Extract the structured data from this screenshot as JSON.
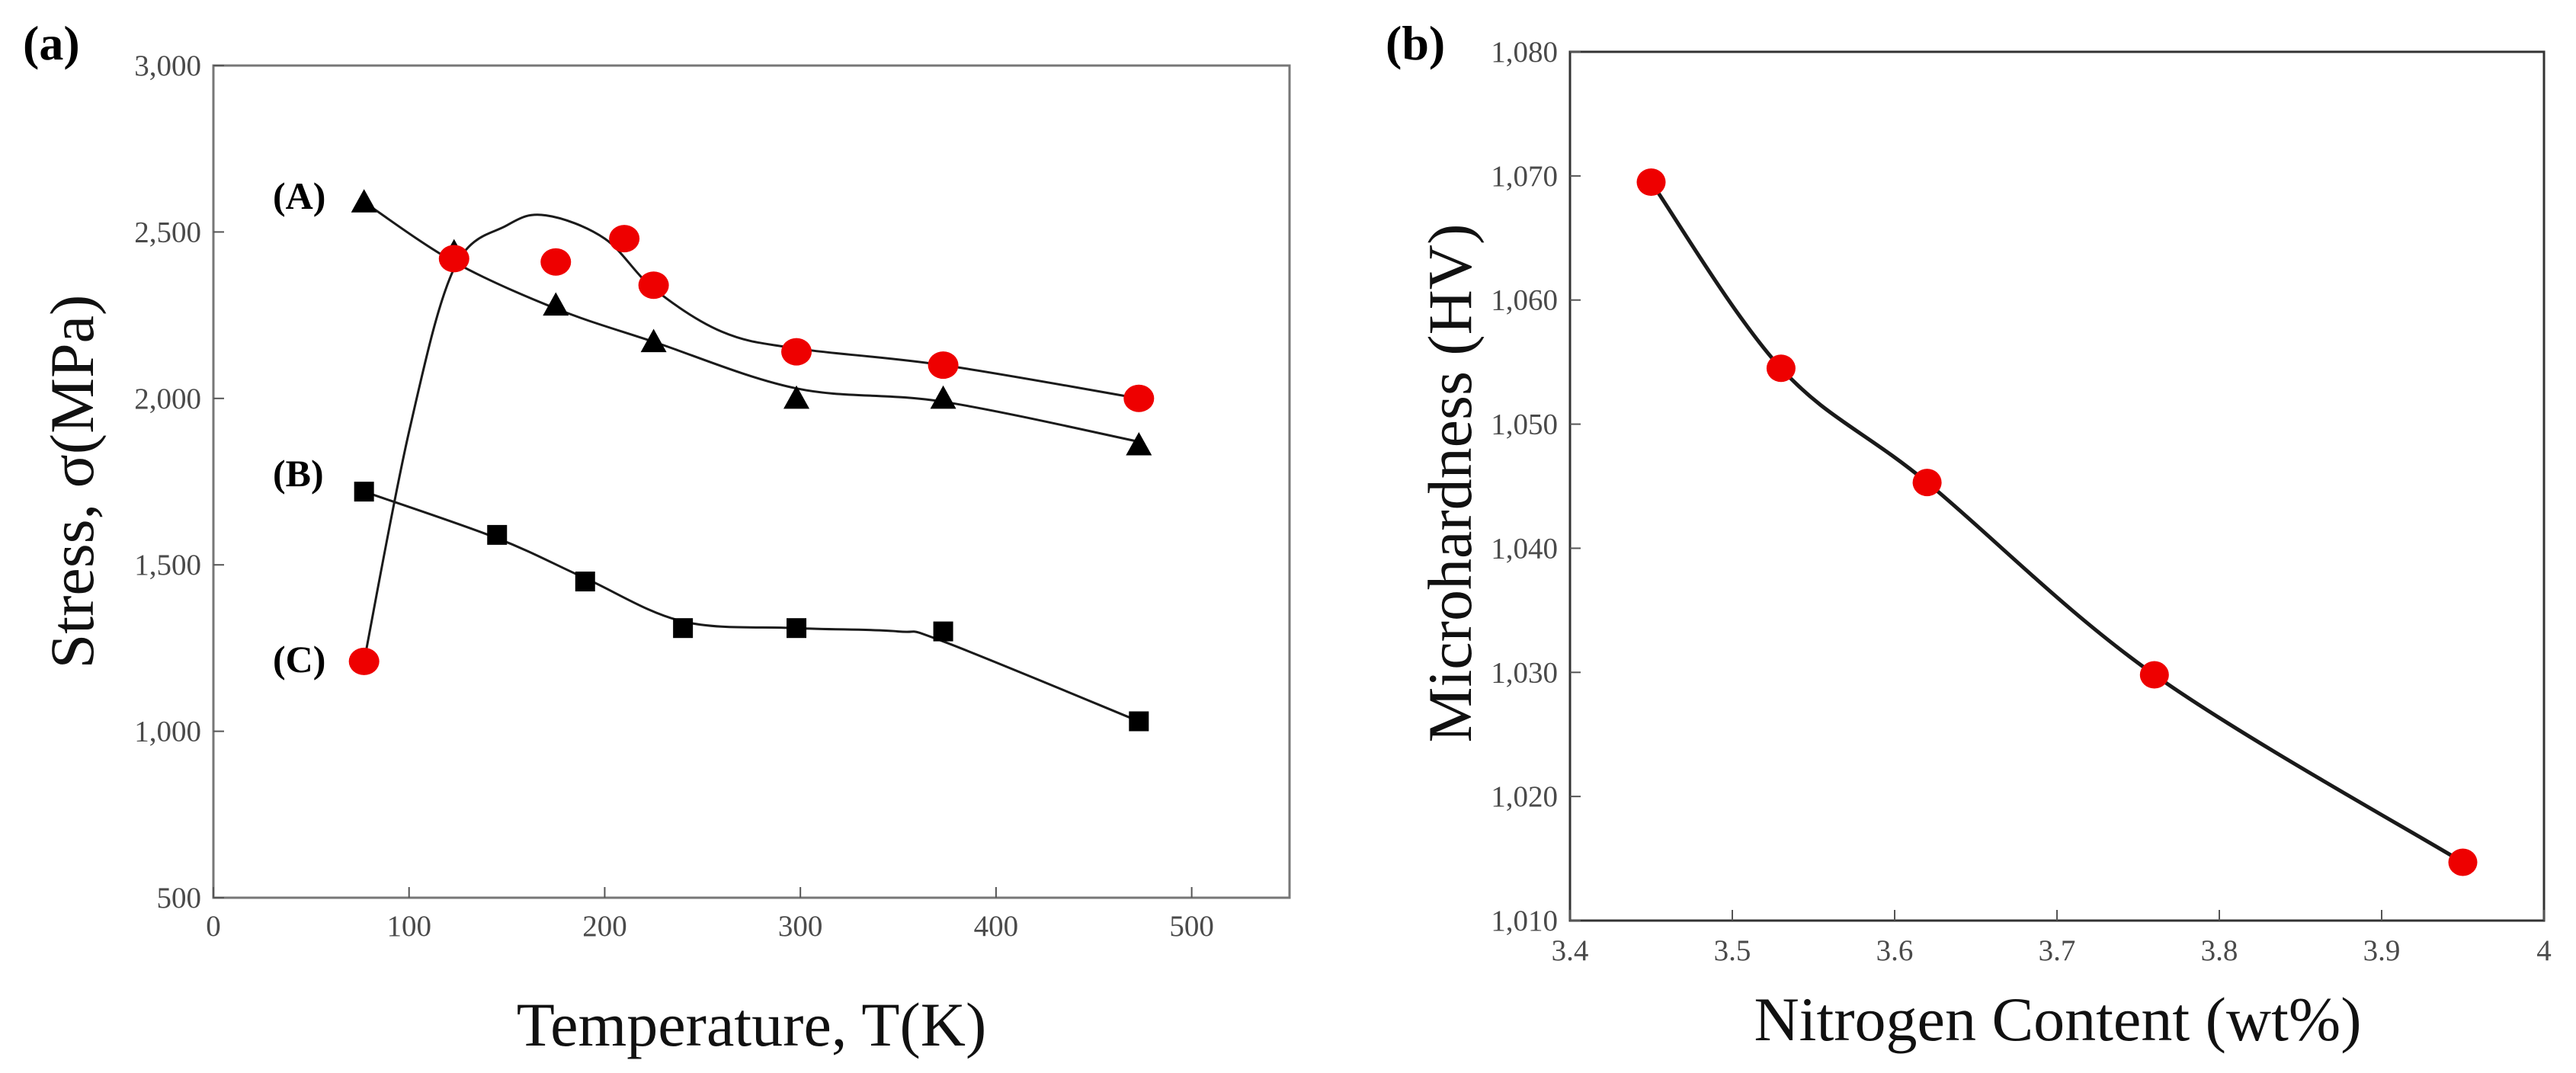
{
  "chart_data": [
    {
      "type": "line",
      "panel_label": "(a)",
      "xlabel": "Temperature, T(K)",
      "ylabel": "Stress, σ(MPa)",
      "xlim": [
        0,
        550
      ],
      "ylim": [
        500,
        3000
      ],
      "xticks": [
        0,
        100,
        200,
        300,
        400,
        500
      ],
      "yticks": [
        500,
        1000,
        1500,
        2000,
        2500,
        3000
      ],
      "xtick_labels": [
        "0",
        "100",
        "200",
        "300",
        "400",
        "500"
      ],
      "ytick_labels": [
        "500",
        "1,000",
        "1,500",
        "2,000",
        "2,500",
        "3,000"
      ],
      "grid": false,
      "series": [
        {
          "name": "(A)",
          "marker": "triangle",
          "color": "#000000",
          "x": [
            77,
            123,
            175,
            225,
            298,
            373,
            473
          ],
          "y": [
            2590,
            2440,
            2280,
            2170,
            2000,
            2000,
            1860
          ],
          "curve_x": [
            77,
            123,
            175,
            225,
            298,
            373,
            473
          ],
          "curve_y": [
            2590,
            2410,
            2270,
            2170,
            2030,
            1990,
            1870
          ]
        },
        {
          "name": "(B)",
          "marker": "square",
          "color": "#000000",
          "x": [
            77,
            145,
            190,
            240,
            298,
            373,
            473
          ],
          "y": [
            1720,
            1590,
            1450,
            1310,
            1310,
            1300,
            1030
          ],
          "curve_x": [
            77,
            145,
            190,
            240,
            298,
            350,
            373,
            473
          ],
          "curve_y": [
            1720,
            1580,
            1460,
            1330,
            1310,
            1300,
            1270,
            1030
          ]
        },
        {
          "name": "(C)",
          "marker": "circle",
          "color": "#ee0000",
          "x": [
            77,
            123,
            175,
            210,
            225,
            298,
            373,
            473
          ],
          "y": [
            1210,
            2420,
            2410,
            2480,
            2340,
            2140,
            2100,
            2000
          ],
          "curve_x": [
            77,
            100,
            123,
            150,
            170,
            200,
            225,
            260,
            298,
            373,
            473
          ],
          "curve_y": [
            1210,
            1900,
            2390,
            2520,
            2550,
            2480,
            2330,
            2200,
            2150,
            2100,
            2000
          ]
        }
      ]
    },
    {
      "type": "line",
      "panel_label": "(b)",
      "xlabel": "Nitrogen Content (wt%)",
      "ylabel": "Microhardness (HV)",
      "xlim": [
        3.4,
        4.0
      ],
      "ylim": [
        1010,
        1080
      ],
      "xticks": [
        3.4,
        3.5,
        3.6,
        3.7,
        3.8,
        3.9,
        4.0
      ],
      "yticks": [
        1010,
        1020,
        1030,
        1040,
        1050,
        1060,
        1070,
        1080
      ],
      "xtick_labels": [
        "3.4",
        "3.5",
        "3.6",
        "3.7",
        "3.8",
        "3.9",
        "4"
      ],
      "ytick_labels": [
        "1,010",
        "1,020",
        "1,030",
        "1,040",
        "1,050",
        "1,060",
        "1,070",
        "1,080"
      ],
      "grid": false,
      "series": [
        {
          "name": "Microhardness",
          "marker": "circle",
          "color": "#ee0000",
          "x": [
            3.45,
            3.53,
            3.62,
            3.76,
            3.95
          ],
          "y": [
            1069.5,
            1054.5,
            1045.3,
            1029.8,
            1014.7
          ]
        }
      ]
    }
  ]
}
